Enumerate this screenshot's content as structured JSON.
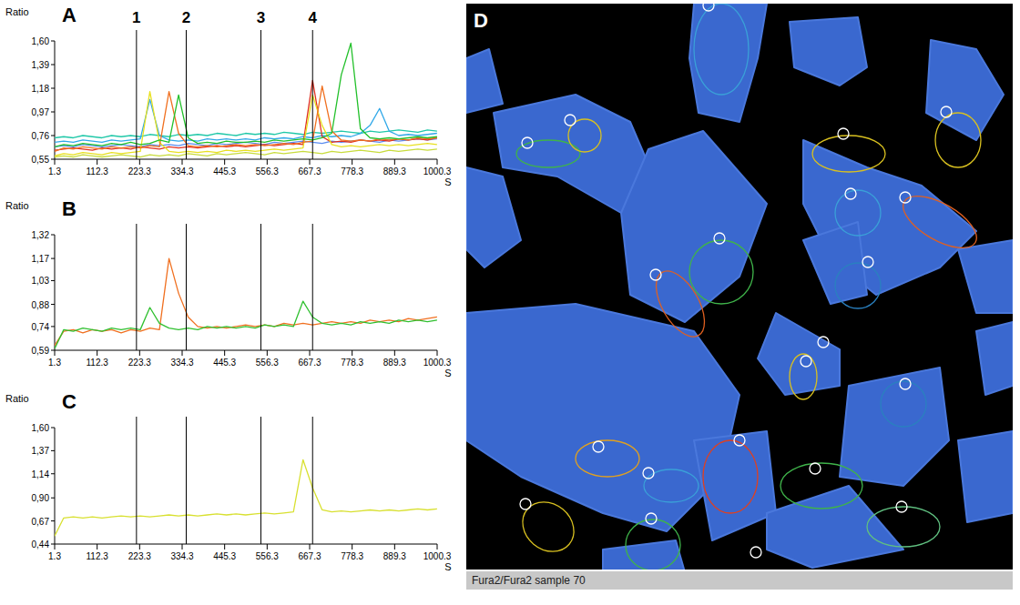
{
  "chart_data": [
    {
      "type": "line",
      "title": "A",
      "y_label": "Ratio",
      "x_label": "S",
      "grid": false,
      "x": [
        1.3,
        25,
        50,
        75,
        100,
        125,
        150,
        175,
        200,
        225,
        250,
        275,
        300,
        325,
        350,
        375,
        400,
        425,
        450,
        475,
        500,
        525,
        550,
        575,
        600,
        625,
        650,
        675,
        700,
        725,
        750,
        775,
        800,
        825,
        850,
        875,
        900,
        925,
        950,
        975,
        1000
      ],
      "xlim": [
        1.3,
        1000.3
      ],
      "xticks": [
        1.3,
        112.3,
        223.3,
        334.3,
        445.3,
        556.3,
        667.3,
        778.3,
        889.3,
        1000.3
      ],
      "ylim": [
        0.55,
        1.6
      ],
      "yticks": [
        {
          "value": 0.55,
          "label": "0,55"
        },
        {
          "value": 0.76,
          "label": "0,76"
        },
        {
          "value": 0.97,
          "label": "0,97"
        },
        {
          "value": 1.18,
          "label": "1,18"
        },
        {
          "value": 1.39,
          "label": "1,39"
        },
        {
          "value": 1.6,
          "label": "1,60"
        }
      ],
      "vlines": [
        {
          "x": 215,
          "label": "1"
        },
        {
          "x": 345,
          "label": "2"
        },
        {
          "x": 540,
          "label": "3"
        },
        {
          "x": 675,
          "label": "4"
        }
      ],
      "series": [
        {
          "color": "#c8dc3c",
          "values": [
            0.57,
            0.58,
            0.57,
            0.59,
            0.58,
            0.57,
            0.58,
            0.59,
            0.58,
            0.57,
            0.59,
            0.58,
            0.59,
            0.58,
            0.6,
            0.59,
            0.58,
            0.6,
            0.59,
            0.6,
            0.61,
            0.6,
            0.59,
            0.61,
            0.6,
            0.61,
            0.62,
            0.61,
            0.6,
            0.62,
            0.61,
            0.62,
            0.63,
            0.62,
            0.61,
            0.63,
            0.62,
            0.63,
            0.64,
            0.63,
            0.64
          ]
        },
        {
          "color": "#5a8cf0",
          "values": [
            0.66,
            0.67,
            0.66,
            0.68,
            0.67,
            0.66,
            0.67,
            0.68,
            0.67,
            0.66,
            0.68,
            0.67,
            0.68,
            0.67,
            0.69,
            0.68,
            0.67,
            0.69,
            0.68,
            0.69,
            0.7,
            0.69,
            0.68,
            0.7,
            0.69,
            0.7,
            0.71,
            0.7,
            0.69,
            0.71,
            0.7,
            0.71,
            0.72,
            0.71,
            0.7,
            0.72,
            0.71,
            0.72,
            0.73,
            0.72,
            0.73
          ]
        },
        {
          "color": "#20c8a8",
          "values": [
            0.74,
            0.75,
            0.74,
            0.76,
            0.75,
            0.74,
            0.76,
            0.75,
            0.76,
            0.75,
            0.77,
            0.76,
            0.75,
            0.77,
            0.76,
            0.77,
            0.76,
            0.78,
            0.77,
            0.76,
            0.78,
            0.77,
            0.78,
            0.77,
            0.79,
            0.78,
            0.77,
            0.79,
            0.78,
            0.79,
            0.8,
            0.79,
            0.78,
            0.8,
            0.79,
            0.8,
            0.81,
            0.8,
            0.79,
            0.81,
            0.8
          ]
        },
        {
          "color": "#30a8e8",
          "values": [
            0.7,
            0.71,
            0.7,
            0.72,
            0.71,
            0.7,
            0.72,
            0.71,
            0.72,
            0.73,
            1.08,
            0.76,
            0.72,
            0.71,
            0.72,
            0.71,
            0.73,
            0.72,
            0.73,
            0.72,
            0.73,
            0.72,
            0.74,
            0.73,
            0.74,
            0.73,
            0.75,
            0.74,
            0.76,
            0.75,
            0.76,
            0.75,
            0.78,
            0.85,
            1.0,
            0.8,
            0.76,
            0.77,
            0.76,
            0.77,
            0.78
          ]
        },
        {
          "color": "#e03020",
          "values": [
            0.63,
            0.64,
            0.65,
            0.64,
            0.63,
            0.65,
            0.64,
            0.65,
            0.64,
            0.66,
            0.65,
            0.64,
            0.66,
            0.65,
            0.66,
            0.65,
            0.66,
            0.67,
            0.66,
            0.67,
            0.66,
            0.67,
            0.68,
            0.67,
            0.68,
            0.69,
            0.68,
            1.25,
            0.75,
            0.7,
            0.71,
            0.7,
            0.72,
            0.71,
            0.72,
            0.71,
            0.73,
            0.72,
            0.73,
            0.72,
            0.74
          ]
        },
        {
          "color": "#e8e020",
          "values": [
            0.58,
            0.6,
            0.59,
            0.61,
            0.6,
            0.59,
            0.61,
            0.6,
            0.61,
            0.62,
            1.15,
            0.7,
            0.62,
            0.61,
            0.62,
            0.61,
            0.62,
            0.61,
            0.63,
            0.62,
            0.63,
            0.62,
            0.63,
            0.64,
            0.63,
            0.64,
            0.65,
            1.12,
            0.85,
            0.68,
            0.66,
            0.67,
            0.66,
            0.67,
            0.68,
            0.67,
            0.68,
            0.67,
            0.68,
            0.69,
            0.68
          ]
        },
        {
          "color": "#f07020",
          "values": [
            0.62,
            0.65,
            0.64,
            0.66,
            0.65,
            0.64,
            0.66,
            0.65,
            0.66,
            0.65,
            0.67,
            0.66,
            1.15,
            0.78,
            0.67,
            0.66,
            0.67,
            0.66,
            0.67,
            0.68,
            0.67,
            0.68,
            0.67,
            0.68,
            0.69,
            0.68,
            0.7,
            0.71,
            1.2,
            0.8,
            0.72,
            0.71,
            0.72,
            0.71,
            0.73,
            0.72,
            0.73,
            0.72,
            0.74,
            0.73,
            0.74
          ]
        },
        {
          "color": "#22c02a",
          "values": [
            0.66,
            0.68,
            0.67,
            0.69,
            0.68,
            0.67,
            0.69,
            0.68,
            0.7,
            0.68,
            0.69,
            0.72,
            0.7,
            1.12,
            0.74,
            0.69,
            0.7,
            0.69,
            0.71,
            0.7,
            0.7,
            0.71,
            0.7,
            0.72,
            0.71,
            0.72,
            0.73,
            0.72,
            0.74,
            0.78,
            1.3,
            1.58,
            0.82,
            0.74,
            0.73,
            0.74,
            0.73,
            0.74,
            0.75,
            0.74,
            0.75
          ]
        }
      ]
    },
    {
      "type": "line",
      "title": "B",
      "y_label": "Ratio",
      "x_label": "S",
      "grid": false,
      "x": [
        1.3,
        25,
        50,
        75,
        100,
        125,
        150,
        175,
        200,
        225,
        250,
        275,
        300,
        325,
        350,
        375,
        400,
        425,
        450,
        475,
        500,
        525,
        550,
        575,
        600,
        625,
        650,
        675,
        700,
        725,
        750,
        775,
        800,
        825,
        850,
        875,
        900,
        925,
        950,
        975,
        1000
      ],
      "xlim": [
        1.3,
        1000.3
      ],
      "xticks": [
        1.3,
        112.3,
        223.3,
        334.3,
        445.3,
        556.3,
        667.3,
        778.3,
        889.3,
        1000.3
      ],
      "ylim": [
        0.59,
        1.32
      ],
      "yticks": [
        {
          "value": 0.59,
          "label": "0,59"
        },
        {
          "value": 0.74,
          "label": "0,74"
        },
        {
          "value": 0.88,
          "label": "0,88"
        },
        {
          "value": 1.03,
          "label": "1,03"
        },
        {
          "value": 1.17,
          "label": "1,17"
        },
        {
          "value": 1.32,
          "label": "1,32"
        }
      ],
      "vlines": [
        {
          "x": 215
        },
        {
          "x": 345
        },
        {
          "x": 540
        },
        {
          "x": 675
        }
      ],
      "series": [
        {
          "color": "#f07020",
          "values": [
            0.62,
            0.71,
            0.72,
            0.7,
            0.72,
            0.71,
            0.72,
            0.7,
            0.72,
            0.71,
            0.73,
            0.72,
            1.17,
            0.95,
            0.8,
            0.74,
            0.73,
            0.74,
            0.73,
            0.74,
            0.75,
            0.74,
            0.75,
            0.74,
            0.76,
            0.75,
            0.76,
            0.75,
            0.76,
            0.77,
            0.76,
            0.77,
            0.76,
            0.78,
            0.77,
            0.78,
            0.77,
            0.79,
            0.78,
            0.79,
            0.8
          ]
        },
        {
          "color": "#30c030",
          "values": [
            0.6,
            0.72,
            0.71,
            0.73,
            0.72,
            0.71,
            0.73,
            0.72,
            0.73,
            0.72,
            0.86,
            0.76,
            0.73,
            0.72,
            0.73,
            0.72,
            0.74,
            0.73,
            0.74,
            0.73,
            0.74,
            0.73,
            0.75,
            0.74,
            0.75,
            0.74,
            0.9,
            0.8,
            0.76,
            0.75,
            0.76,
            0.75,
            0.77,
            0.76,
            0.77,
            0.76,
            0.78,
            0.77,
            0.78,
            0.77,
            0.78
          ]
        }
      ]
    },
    {
      "type": "line",
      "title": "C",
      "y_label": "Ratio",
      "x_label": "S",
      "grid": false,
      "x": [
        1.3,
        25,
        50,
        75,
        100,
        125,
        150,
        175,
        200,
        225,
        250,
        275,
        300,
        325,
        350,
        375,
        400,
        425,
        450,
        475,
        500,
        525,
        550,
        575,
        600,
        625,
        650,
        675,
        700,
        725,
        750,
        775,
        800,
        825,
        850,
        875,
        900,
        925,
        950,
        975,
        1000
      ],
      "xlim": [
        1.3,
        1000.3
      ],
      "xticks": [
        1.3,
        112.3,
        223.3,
        334.3,
        445.3,
        556.3,
        667.3,
        778.3,
        889.3,
        1000.3
      ],
      "ylim": [
        0.44,
        1.6
      ],
      "yticks": [
        {
          "value": 0.44,
          "label": "0,44"
        },
        {
          "value": 0.67,
          "label": "0,67"
        },
        {
          "value": 0.9,
          "label": "0,90"
        },
        {
          "value": 1.14,
          "label": "1,14"
        },
        {
          "value": 1.37,
          "label": "1,37"
        },
        {
          "value": 1.6,
          "label": "1,60"
        }
      ],
      "vlines": [
        {
          "x": 215
        },
        {
          "x": 345
        },
        {
          "x": 540
        },
        {
          "x": 675
        }
      ],
      "series": [
        {
          "color": "#d8e030",
          "values": [
            0.52,
            0.7,
            0.71,
            0.7,
            0.71,
            0.7,
            0.71,
            0.72,
            0.71,
            0.72,
            0.71,
            0.72,
            0.73,
            0.72,
            0.73,
            0.72,
            0.73,
            0.74,
            0.73,
            0.74,
            0.73,
            0.74,
            0.75,
            0.74,
            0.75,
            0.76,
            1.28,
            1.0,
            0.78,
            0.76,
            0.77,
            0.76,
            0.77,
            0.78,
            0.77,
            0.78,
            0.77,
            0.78,
            0.79,
            0.78,
            0.79
          ]
        }
      ]
    }
  ],
  "image_panel": {
    "title": "D",
    "caption": "Fura2/Fura2 sample 70"
  }
}
